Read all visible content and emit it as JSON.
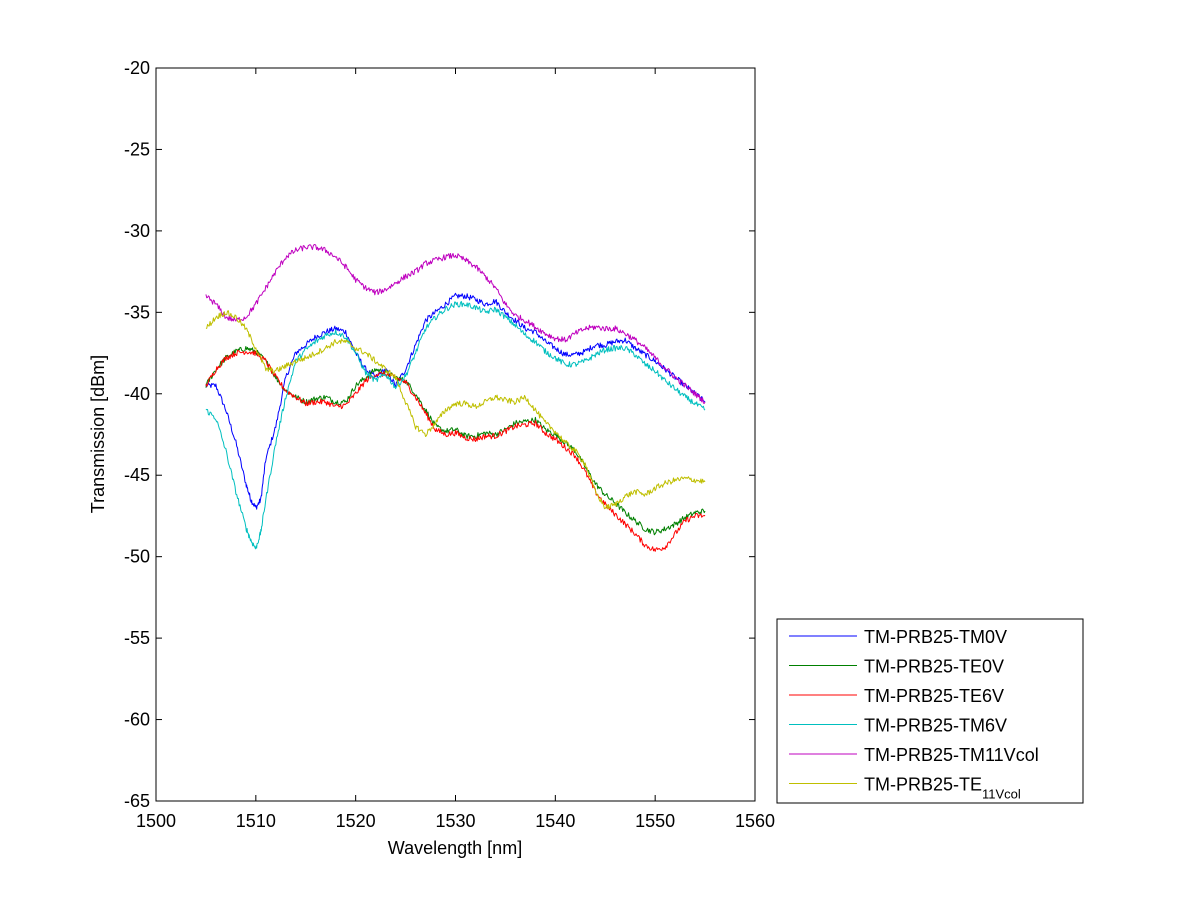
{
  "chart_data": {
    "type": "line",
    "title": "",
    "xlabel": "Wavelength [nm]",
    "ylabel": "Transmission [dBm]",
    "xlim": [
      1500,
      1560
    ],
    "ylim": [
      -65,
      -20
    ],
    "xticks": [
      1500,
      1510,
      1520,
      1530,
      1540,
      1550,
      1560
    ],
    "yticks": [
      -20,
      -25,
      -30,
      -35,
      -40,
      -45,
      -50,
      -55,
      -60,
      -65
    ],
    "grid": false,
    "legend_position": "outside-bottom-right",
    "series": [
      {
        "name": "TM-PRB25-TM0V",
        "legend": {
          "base": "TM-PRB25-TM0V",
          "sub": ""
        },
        "color": "#0000ff",
        "x": [
          1505,
          1506,
          1507,
          1508,
          1509,
          1509.5,
          1510,
          1510.5,
          1511,
          1512,
          1513,
          1514,
          1515,
          1516,
          1517,
          1518,
          1519,
          1520,
          1521,
          1522,
          1523,
          1524,
          1525,
          1526,
          1527,
          1528,
          1529,
          1530,
          1531,
          1532,
          1533,
          1534,
          1535,
          1536,
          1537,
          1538,
          1539,
          1540,
          1541,
          1542,
          1543,
          1544,
          1545,
          1546,
          1547,
          1548,
          1549,
          1550,
          1551,
          1552,
          1553,
          1554,
          1555
        ],
        "y": [
          -39.5,
          -39.5,
          -41,
          -43,
          -45.5,
          -46.5,
          -47,
          -46.5,
          -44,
          -42,
          -39,
          -37.5,
          -37,
          -36.5,
          -36.2,
          -36,
          -36.2,
          -37.5,
          -38.5,
          -39,
          -38.5,
          -39.5,
          -38.5,
          -37,
          -35.5,
          -35,
          -34.5,
          -34,
          -34,
          -34.2,
          -34.5,
          -34.3,
          -35,
          -35.5,
          -36,
          -36.2,
          -36.8,
          -37.2,
          -37.6,
          -37.6,
          -37.4,
          -37,
          -37,
          -36.8,
          -36.7,
          -37.2,
          -37.6,
          -38,
          -38.5,
          -39,
          -39.5,
          -40,
          -40.5
        ]
      },
      {
        "name": "TM-PRB25-TE0V",
        "legend": {
          "base": "TM-PRB25-TE0V",
          "sub": ""
        },
        "color": "#008000",
        "x": [
          1505,
          1506,
          1507,
          1508,
          1509,
          1510,
          1511,
          1512,
          1513,
          1514,
          1515,
          1516,
          1517,
          1518,
          1519,
          1520,
          1521,
          1522,
          1523,
          1524,
          1525,
          1526,
          1527,
          1528,
          1529,
          1530,
          1531,
          1532,
          1533,
          1534,
          1535,
          1536,
          1537,
          1538,
          1539,
          1540,
          1541,
          1542,
          1543,
          1544,
          1545,
          1546,
          1547,
          1548,
          1549,
          1550,
          1551,
          1552,
          1553,
          1554,
          1555
        ],
        "y": [
          -39.5,
          -38.5,
          -37.8,
          -37.4,
          -37.2,
          -37.4,
          -38,
          -39,
          -39.8,
          -40.2,
          -40.5,
          -40.3,
          -40.2,
          -40.5,
          -40.5,
          -39.5,
          -39,
          -38.5,
          -38.7,
          -39,
          -39.2,
          -40,
          -41,
          -42,
          -42.3,
          -42.2,
          -42.6,
          -42.6,
          -42.4,
          -42.5,
          -42.2,
          -41.8,
          -41.7,
          -41.6,
          -42.2,
          -42.5,
          -43,
          -43.5,
          -44.5,
          -45.5,
          -46.2,
          -46.7,
          -47.3,
          -47.8,
          -48.3,
          -48.5,
          -48.3,
          -48,
          -47.6,
          -47.3,
          -47.2
        ]
      },
      {
        "name": "TM-PRB25-TE6V",
        "legend": {
          "base": "TM-PRB25-TE6V",
          "sub": ""
        },
        "color": "#ff0000",
        "x": [
          1505,
          1506,
          1507,
          1508,
          1509,
          1510,
          1511,
          1512,
          1513,
          1514,
          1515,
          1516,
          1517,
          1518,
          1519,
          1520,
          1521,
          1522,
          1523,
          1524,
          1525,
          1526,
          1527,
          1528,
          1529,
          1530,
          1531,
          1532,
          1533,
          1534,
          1535,
          1536,
          1537,
          1538,
          1539,
          1540,
          1541,
          1542,
          1543,
          1544,
          1545,
          1546,
          1547,
          1548,
          1549,
          1550,
          1551,
          1552,
          1553,
          1554,
          1555
        ],
        "y": [
          -39.5,
          -38.5,
          -37.8,
          -37.5,
          -37.4,
          -37.5,
          -38,
          -39,
          -39.8,
          -40.2,
          -40.6,
          -40.5,
          -40.5,
          -40.8,
          -40.7,
          -40,
          -39.2,
          -38.8,
          -38.8,
          -39,
          -39.3,
          -40.2,
          -41.2,
          -42.2,
          -42.5,
          -42.4,
          -42.7,
          -42.8,
          -42.6,
          -42.6,
          -42.3,
          -42,
          -41.9,
          -41.8,
          -42.4,
          -42.8,
          -43.3,
          -43.8,
          -44.8,
          -46,
          -46.8,
          -47.4,
          -48,
          -48.6,
          -49.3,
          -49.6,
          -49.4,
          -48.6,
          -47.8,
          -47.5,
          -47.5
        ]
      },
      {
        "name": "TM-PRB25-TM6V",
        "legend": {
          "base": "TM-PRB25-TM6V",
          "sub": ""
        },
        "color": "#00bfbf",
        "x": [
          1505,
          1506,
          1507,
          1508,
          1509,
          1509.5,
          1510,
          1510.5,
          1511,
          1512,
          1513,
          1514,
          1515,
          1516,
          1517,
          1518,
          1519,
          1520,
          1521,
          1522,
          1523,
          1524,
          1525,
          1526,
          1527,
          1528,
          1529,
          1530,
          1531,
          1532,
          1533,
          1534,
          1535,
          1536,
          1537,
          1538,
          1539,
          1540,
          1541,
          1542,
          1543,
          1544,
          1545,
          1546,
          1547,
          1548,
          1549,
          1550,
          1551,
          1552,
          1553,
          1554,
          1555
        ],
        "y": [
          -41,
          -41.5,
          -43.5,
          -46,
          -48.2,
          -49,
          -49.5,
          -48.5,
          -46.5,
          -43,
          -40.2,
          -38,
          -37.3,
          -36.8,
          -36.4,
          -36.2,
          -36.5,
          -37.5,
          -38.7,
          -39.2,
          -38.8,
          -39.6,
          -38.9,
          -37.5,
          -36,
          -35.3,
          -34.8,
          -34.5,
          -34.5,
          -34.7,
          -35,
          -34.8,
          -35.3,
          -35.8,
          -36.4,
          -36.8,
          -37.4,
          -37.8,
          -38.2,
          -38.2,
          -38,
          -37.6,
          -37.3,
          -37.2,
          -37.2,
          -37.6,
          -38.2,
          -38.6,
          -39.2,
          -39.7,
          -40.2,
          -40.6,
          -41
        ]
      },
      {
        "name": "TM-PRB25-TM11Vcol",
        "legend": {
          "base": "TM-PRB25-TM11Vcol",
          "sub": ""
        },
        "color": "#bf00bf",
        "x": [
          1505,
          1506,
          1507,
          1508,
          1509,
          1510,
          1511,
          1512,
          1513,
          1514,
          1515,
          1516,
          1517,
          1518,
          1519,
          1520,
          1521,
          1522,
          1523,
          1524,
          1525,
          1526,
          1527,
          1528,
          1529,
          1530,
          1531,
          1532,
          1533,
          1534,
          1535,
          1536,
          1537,
          1538,
          1539,
          1540,
          1541,
          1542,
          1543,
          1544,
          1545,
          1546,
          1547,
          1548,
          1549,
          1550,
          1551,
          1552,
          1553,
          1554,
          1555
        ],
        "y": [
          -34,
          -34.5,
          -35.3,
          -35.5,
          -35.3,
          -34.5,
          -33.5,
          -32.5,
          -31.6,
          -31.2,
          -31,
          -31,
          -31.2,
          -31.6,
          -32.2,
          -33,
          -33.5,
          -33.8,
          -33.6,
          -33.2,
          -32.8,
          -32.5,
          -32,
          -31.8,
          -31.6,
          -31.5,
          -31.8,
          -32.2,
          -32.8,
          -33.5,
          -34.5,
          -35.2,
          -35.5,
          -35.9,
          -36.3,
          -36.6,
          -36.7,
          -36.3,
          -36,
          -35.9,
          -36,
          -36,
          -36.3,
          -36.7,
          -37.2,
          -37.8,
          -38.4,
          -39,
          -39.5,
          -40,
          -40.5
        ]
      },
      {
        "name": "TM-PRB25-TE11Vcol",
        "legend": {
          "base": "TM-PRB25-TE",
          "sub": "11Vcol"
        },
        "color": "#bfbf00",
        "x": [
          1505,
          1506,
          1507,
          1508,
          1509,
          1510,
          1511,
          1512,
          1513,
          1514,
          1515,
          1516,
          1517,
          1518,
          1519,
          1520,
          1521,
          1522,
          1523,
          1524,
          1525,
          1526,
          1527,
          1528,
          1529,
          1530,
          1531,
          1532,
          1533,
          1534,
          1535,
          1536,
          1537,
          1538,
          1539,
          1540,
          1541,
          1542,
          1543,
          1544,
          1545,
          1546,
          1547,
          1548,
          1549,
          1550,
          1551,
          1552,
          1553,
          1554,
          1555
        ],
        "y": [
          -36,
          -35.3,
          -35,
          -35.3,
          -36,
          -37.2,
          -38.5,
          -38.6,
          -38.3,
          -38,
          -37.8,
          -37.5,
          -37.2,
          -36.8,
          -36.8,
          -37.2,
          -37.5,
          -38,
          -38.5,
          -39,
          -40.5,
          -42,
          -42.5,
          -41.8,
          -41,
          -40.6,
          -40.6,
          -40.8,
          -40.5,
          -40.2,
          -40.4,
          -40.5,
          -40.2,
          -41,
          -41.8,
          -42.3,
          -43,
          -43.5,
          -44.3,
          -46,
          -47,
          -46.8,
          -46.3,
          -46,
          -46.2,
          -45.8,
          -45.5,
          -45.3,
          -45.2,
          -45.3,
          -45.4
        ]
      }
    ]
  }
}
